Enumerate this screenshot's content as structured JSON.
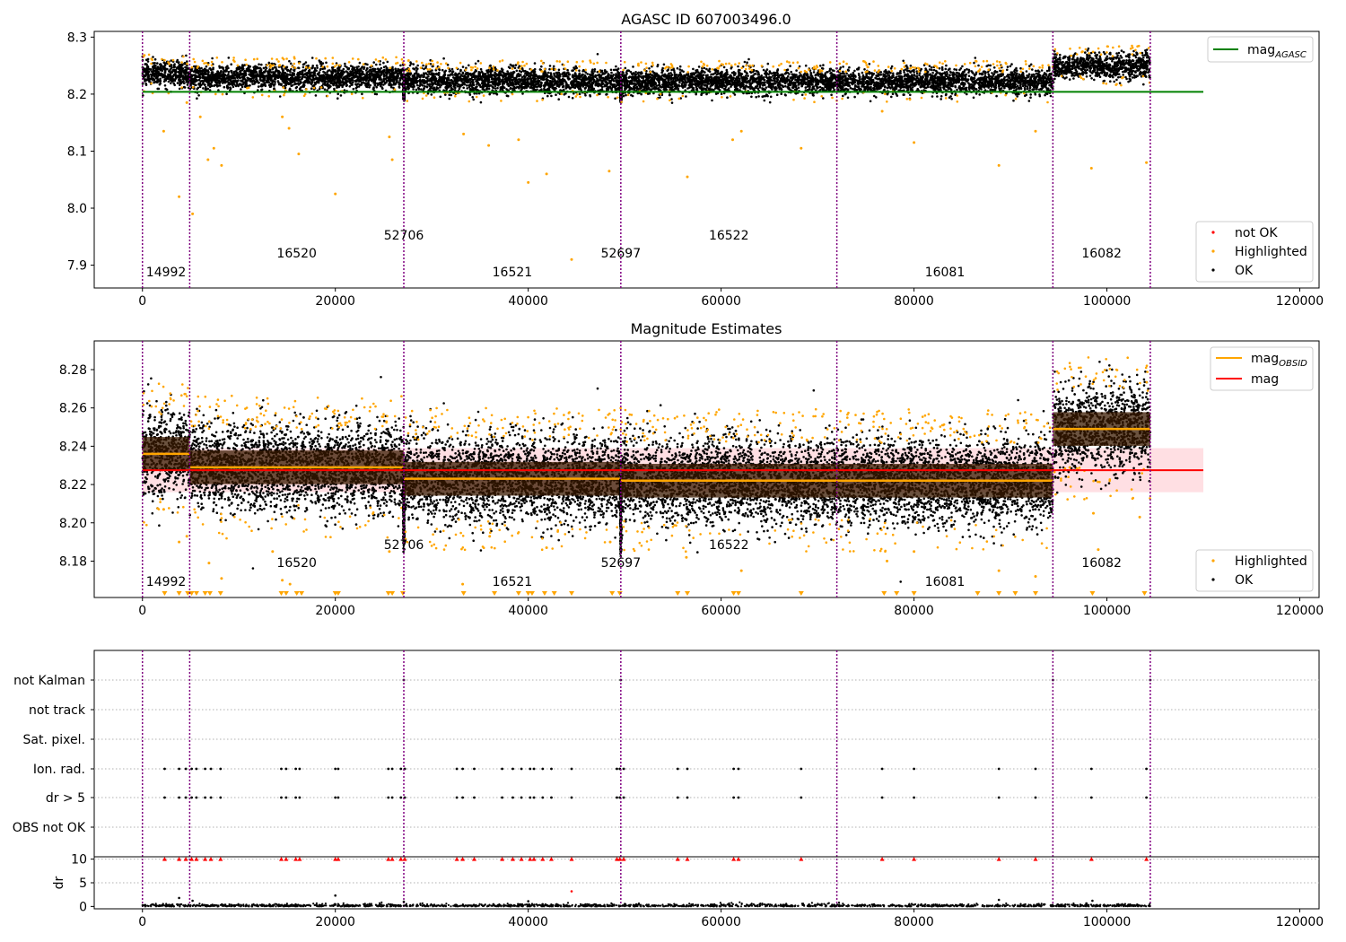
{
  "titles": {
    "top": "AGASC ID 607003496.0",
    "middle": "Magnitude Estimates"
  },
  "colors": {
    "ok": "#000000",
    "highlighted": "#ffa500",
    "not_ok": "#ff0000",
    "mag_agasc": "#008000",
    "mag_obsid": "#ffa500",
    "mag": "#ff0000",
    "obs_divider": "#800080",
    "mag_band": "#ffc0c8"
  },
  "legends": {
    "top_line": [
      "mag",
      "AGASC"
    ],
    "top_points": [
      "not OK",
      "Highlighted",
      "OK"
    ],
    "middle_lines": [
      [
        "mag",
        "OBSID"
      ],
      [
        "mag",
        ""
      ]
    ],
    "middle_points": [
      "Highlighted",
      "OK"
    ]
  },
  "chart_data": [
    {
      "type": "scatter",
      "panel": "top",
      "title": "AGASC ID 607003496.0",
      "xlim": [
        -5000,
        122000
      ],
      "ylim": [
        7.86,
        8.31
      ],
      "xticks": [
        "0",
        "20000",
        "40000",
        "60000",
        "80000",
        "100000",
        "120000"
      ],
      "yticks": [
        "7.9",
        "8.0",
        "8.1",
        "8.2",
        "8.3"
      ],
      "mag_agasc": 8.204,
      "mag_agasc_xrange": [
        0,
        110000
      ],
      "obs_boundaries": [
        0,
        4900,
        27100,
        49600,
        72000,
        94400,
        104500
      ],
      "observations": [
        {
          "obsid": "14992",
          "x_center": 2450,
          "mean": 8.236,
          "std": 0.011
        },
        {
          "obsid": "16520",
          "x_center": 16000,
          "mean": 8.229,
          "std": 0.011
        },
        {
          "obsid": "52706",
          "x_center": 27100,
          "mean": 8.224,
          "std": 0.012
        },
        {
          "obsid": "16521",
          "x_center": 38350,
          "mean": 8.223,
          "std": 0.011
        },
        {
          "obsid": "52697",
          "x_center": 49600,
          "mean": 8.222,
          "std": 0.012
        },
        {
          "obsid": "16522",
          "x_center": 60800,
          "mean": 8.222,
          "std": 0.011
        },
        {
          "obsid": "16081",
          "x_center": 83200,
          "mean": 8.222,
          "std": 0.011
        },
        {
          "obsid": "16082",
          "x_center": 99450,
          "mean": 8.249,
          "std": 0.011
        }
      ],
      "series": [
        {
          "name": "OK",
          "color": "#000000"
        },
        {
          "name": "Highlighted",
          "color": "#ffa500"
        },
        {
          "name": "not OK",
          "color": "#ff0000"
        }
      ],
      "highlighted_outliers": [
        [
          2200,
          8.135
        ],
        [
          3800,
          8.02
        ],
        [
          4600,
          8.185
        ],
        [
          5200,
          7.99
        ],
        [
          6000,
          8.16
        ],
        [
          6800,
          8.085
        ],
        [
          7400,
          8.105
        ],
        [
          8200,
          8.075
        ],
        [
          14500,
          8.16
        ],
        [
          15200,
          8.14
        ],
        [
          16200,
          8.095
        ],
        [
          20000,
          8.025
        ],
        [
          25600,
          8.125
        ],
        [
          25900,
          8.085
        ],
        [
          33300,
          8.13
        ],
        [
          35900,
          8.11
        ],
        [
          39000,
          8.12
        ],
        [
          40000,
          8.045
        ],
        [
          41900,
          8.06
        ],
        [
          44500,
          7.91
        ],
        [
          48400,
          8.065
        ],
        [
          56500,
          8.055
        ],
        [
          61200,
          8.12
        ],
        [
          62100,
          8.135
        ],
        [
          68300,
          8.105
        ],
        [
          76700,
          8.17
        ],
        [
          80000,
          8.115
        ],
        [
          88800,
          8.075
        ],
        [
          92600,
          8.135
        ],
        [
          98400,
          8.07
        ],
        [
          104100,
          8.08
        ]
      ]
    },
    {
      "type": "scatter",
      "panel": "middle",
      "title": "Magnitude Estimates",
      "xlim": [
        -5000,
        122000
      ],
      "ylim": [
        8.161,
        8.295
      ],
      "xticks": [
        "0",
        "20000",
        "40000",
        "60000",
        "80000",
        "100000",
        "120000"
      ],
      "yticks": [
        "8.18",
        "8.20",
        "8.22",
        "8.24",
        "8.26",
        "8.28"
      ],
      "mag": 8.2275,
      "mag_band": [
        8.216,
        8.239
      ],
      "series": [
        {
          "name": "OK",
          "color": "#000000"
        },
        {
          "name": "Highlighted",
          "color": "#ffa500"
        },
        {
          "name": "mag_OBSID",
          "color": "#ffa500"
        },
        {
          "name": "mag",
          "color": "#ff0000"
        }
      ],
      "highlighted_outliers": [
        [
          2200,
          8.207
        ],
        [
          3800,
          8.19
        ],
        [
          4600,
          8.193
        ],
        [
          6900,
          8.179
        ],
        [
          8200,
          8.171
        ],
        [
          13500,
          8.185
        ],
        [
          14500,
          8.17
        ],
        [
          15300,
          8.168
        ],
        [
          25600,
          8.185
        ],
        [
          33200,
          8.168
        ],
        [
          36000,
          8.193
        ],
        [
          41900,
          8.187
        ],
        [
          48500,
          8.19
        ],
        [
          56400,
          8.182
        ],
        [
          62100,
          8.175
        ],
        [
          77200,
          8.18
        ],
        [
          80000,
          8.185
        ],
        [
          88800,
          8.175
        ],
        [
          92600,
          8.172
        ],
        [
          98600,
          8.205
        ],
        [
          99100,
          8.186
        ],
        [
          103400,
          8.203
        ]
      ],
      "clipped_markers_x": [
        2300,
        3800,
        4700,
        5100,
        5600,
        6500,
        7000,
        8100,
        14400,
        14900,
        16000,
        16500,
        20000,
        20300,
        25500,
        25900,
        27000,
        33300,
        36500,
        39000,
        40000,
        40400,
        41700,
        42700,
        44500,
        48700,
        49500,
        55500,
        56500,
        61300,
        61800,
        68300,
        76900,
        78200,
        80000,
        86600,
        88800,
        90500,
        92600,
        98500,
        103900
      ]
    },
    {
      "type": "scatter",
      "panel": "flags",
      "xlim": [
        -5000,
        122000
      ],
      "ylabels": [
        "not Kalman",
        "not track",
        "Sat. pixel.",
        "Ion. rad.",
        "dr > 5",
        "OBS not OK"
      ],
      "flag_x": {
        "Ion. rad.": [
          2300,
          3800,
          4500,
          5100,
          5600,
          6500,
          7100,
          8100,
          14400,
          14900,
          15900,
          16300,
          20000,
          20300,
          25500,
          25900,
          26800,
          27200,
          32600,
          33200,
          34400,
          37300,
          38400,
          39300,
          40200,
          40600,
          41500,
          42400,
          44500,
          49200,
          49500,
          49900,
          55500,
          56500,
          61300,
          61800,
          68300,
          76700,
          80000,
          88800,
          92600,
          98400,
          104100
        ],
        "dr > 5": [
          2300,
          3800,
          4500,
          5100,
          5600,
          6500,
          7100,
          8100,
          14400,
          14900,
          15900,
          16300,
          20000,
          20300,
          25500,
          25900,
          26800,
          27200,
          32600,
          33200,
          34400,
          37300,
          38400,
          39300,
          40200,
          40600,
          41500,
          42400,
          44500,
          49200,
          49500,
          49900,
          55500,
          56500,
          61300,
          61800,
          68300,
          76700,
          80000,
          88800,
          92600,
          98400,
          104100
        ],
        "not Kalman": [
          27100,
          49600,
          94400,
          104500
        ]
      }
    },
    {
      "type": "scatter",
      "panel": "dr",
      "ylabel": "dr",
      "xlim": [
        -5000,
        122000
      ],
      "ylim": [
        -0.5,
        10.5
      ],
      "xticks": [
        "0",
        "20000",
        "40000",
        "60000",
        "80000",
        "100000",
        "120000"
      ],
      "yticks": [
        "0",
        "5",
        "10"
      ],
      "clipped_at": 10,
      "clipped_x": [
        2300,
        3800,
        4500,
        5100,
        5600,
        6500,
        7100,
        8100,
        14400,
        14900,
        15900,
        16300,
        20000,
        20300,
        25500,
        25900,
        26800,
        27200,
        32600,
        33200,
        34400,
        37300,
        38400,
        39300,
        40200,
        40600,
        41500,
        42400,
        44500,
        49200,
        49500,
        49900,
        55500,
        56500,
        61300,
        61800,
        68300,
        76700,
        80000,
        88800,
        92600,
        98400,
        104100
      ],
      "moderate_points": [
        [
          3800,
          1.8
        ],
        [
          20000,
          2.3
        ],
        [
          5200,
          1.2
        ],
        [
          40000,
          1.1
        ],
        [
          44500,
          3.2
        ],
        [
          88800,
          1.4
        ],
        [
          98500,
          1.2
        ],
        [
          27100,
          1.0
        ]
      ],
      "typical_range": [
        0,
        0.6
      ]
    }
  ]
}
